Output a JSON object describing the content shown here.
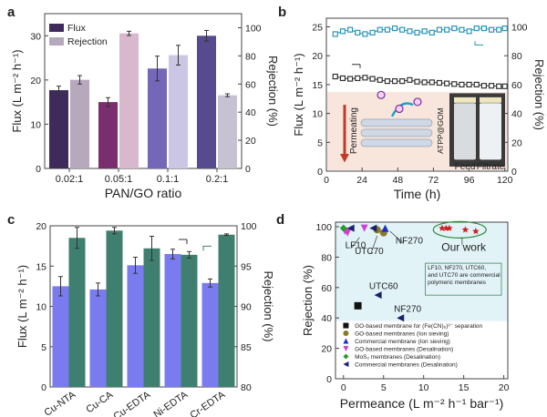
{
  "chart_data": [
    {
      "panel": "a",
      "type": "bar",
      "categories": [
        "0.02:1",
        "0.05:1",
        "0.1:1",
        "0.2:1"
      ],
      "xlabel": "PAN/GO ratio",
      "ylabel": "Flux (L m⁻² h⁻¹)",
      "ylabel_right": "Rejection (%)",
      "ylim": [
        0,
        35
      ],
      "ylim_right": [
        0,
        110
      ],
      "yticks": [
        0,
        10,
        20,
        30
      ],
      "yticks_right": [
        0,
        20,
        40,
        60,
        80,
        100
      ],
      "series": [
        {
          "name": "Flux",
          "axis": "left",
          "values": [
            17.7,
            15.0,
            22.6,
            30.0
          ],
          "errors": [
            0.9,
            1.0,
            2.8,
            1.2
          ],
          "colors": [
            "#3f2a5c",
            "#7a2e6e",
            "#7467b8",
            "#574a8e"
          ]
        },
        {
          "name": "Rejection",
          "axis": "right",
          "values": [
            63,
            96,
            80.5,
            52
          ],
          "errors": [
            3,
            1.5,
            7,
            1
          ],
          "colors": [
            "#b7a9bd",
            "#d8b8cc",
            "#cbc6e3",
            "#c6c2d2"
          ]
        }
      ],
      "legend": "top-left"
    },
    {
      "panel": "b",
      "type": "line",
      "xlabel": "Time (h)",
      "ylabel": "Flux (L m⁻² h⁻¹)",
      "ylabel_right": "Rejection (%)",
      "xlim": [
        0,
        122
      ],
      "ylim": [
        0,
        26.5
      ],
      "ylim_right": [
        0,
        106
      ],
      "xticks": [
        0,
        24,
        48,
        72,
        96,
        120
      ],
      "yticks": [
        0,
        5,
        10,
        15,
        20,
        25
      ],
      "yticks_right": [
        0,
        20,
        40,
        60,
        80,
        100
      ],
      "x": [
        6,
        11,
        16,
        21,
        26,
        31,
        36,
        41,
        46,
        51,
        56,
        61,
        66,
        71,
        76,
        81,
        86,
        91,
        96,
        101,
        106,
        111,
        116,
        120
      ],
      "series": [
        {
          "axis": "left",
          "color": "#333333",
          "values": [
            16.4,
            16.1,
            16.0,
            16.1,
            16.2,
            16.0,
            15.8,
            15.6,
            15.6,
            15.6,
            15.8,
            15.5,
            15.4,
            15.4,
            15.3,
            15.2,
            15.1,
            15.0,
            15.0,
            15.0,
            14.8,
            14.8,
            14.7,
            14.7
          ]
        },
        {
          "axis": "right",
          "color": "#2a95b8",
          "values": [
            95,
            97,
            98,
            96,
            95,
            96,
            98,
            98,
            99,
            98,
            97,
            96,
            97,
            96,
            98,
            98,
            99,
            98,
            97,
            99,
            99,
            98,
            98,
            99
          ]
        }
      ],
      "inset": {
        "arrow_label": "Permeating",
        "membrane_label": "ATPP@GOM",
        "photo_labels": [
          "Feed",
          "Filtrate"
        ]
      }
    },
    {
      "panel": "c",
      "type": "bar",
      "categories": [
        "Cu-NTA",
        "Cu-CA",
        "Cu-EDTA",
        "Ni-EDTA",
        "Cr-EDTA"
      ],
      "ylabel": "Flux (L m⁻² h⁻¹)",
      "ylabel_right": "Rejection (%)",
      "ylim": [
        0,
        20
      ],
      "ylim_right": [
        80,
        100
      ],
      "yticks": [
        0,
        5,
        10,
        15,
        20
      ],
      "yticks_right": [
        80,
        85,
        90,
        95,
        100
      ],
      "series": [
        {
          "axis": "left",
          "color": "#7b7bf0",
          "values": [
            12.5,
            12.1,
            15.1,
            16.5,
            12.9
          ],
          "errors": [
            1.2,
            0.8,
            1.0,
            0.6,
            0.5
          ]
        },
        {
          "axis": "right",
          "color": "#3f7f6f",
          "values": [
            98.5,
            99.4,
            97.2,
            96.4,
            98.9
          ],
          "errors": [
            1.3,
            0.4,
            1.5,
            0.4,
            0.1
          ]
        }
      ]
    },
    {
      "panel": "d",
      "type": "scatter",
      "xlabel": "Permeance (L m⁻² h⁻¹ bar⁻¹)",
      "ylabel": "Rejection (%)",
      "xlim": [
        -1,
        20.5
      ],
      "ylim": [
        0,
        103
      ],
      "xticks": [
        0,
        5,
        10,
        15,
        20
      ],
      "yticks": [
        0,
        20,
        40,
        60,
        80,
        100
      ],
      "series": [
        {
          "name": "GO-based membrane for (Fe(CN)₆)³⁻ separation",
          "marker": "square",
          "color": "#111111",
          "points": [
            [
              1.8,
              48
            ]
          ]
        },
        {
          "name": "GO-based membranes (Ion sieving)",
          "marker": "circle",
          "color": "#8a7a2a",
          "points": [
            [
              4.2,
              98
            ],
            [
              5.0,
              96
            ]
          ]
        },
        {
          "name": "Commercial membrane (Ion sieving)",
          "marker": "triangle-up",
          "color": "#1a2fd0",
          "points": [
            [
              5.2,
              99
            ]
          ]
        },
        {
          "name": "GO-based membranes (Desalination)",
          "marker": "triangle-down",
          "color": "#d040d0",
          "points": [
            [
              0.2,
              97
            ],
            [
              0.5,
              96
            ],
            [
              2.6,
              99
            ]
          ]
        },
        {
          "name": "MoS₂ membranes (Desalination)",
          "marker": "diamond",
          "color": "#2a9a2a",
          "points": [
            [
              0,
              99
            ]
          ]
        },
        {
          "name": "Commercial membranes (Desalination)",
          "marker": "triangle-left",
          "color": "#1a2070",
          "points": [
            [
              0.9,
              99
            ],
            [
              3.7,
              99
            ],
            [
              4.3,
              55
            ],
            [
              7.1,
              40
            ]
          ]
        },
        {
          "marker": "star",
          "color": "#d02020",
          "points": [
            [
              12.3,
              99
            ],
            [
              12.8,
              99
            ],
            [
              13.2,
              99
            ],
            [
              15.2,
              98
            ],
            [
              16.5,
              97
            ]
          ]
        }
      ],
      "annotations": [
        {
          "text": "LF10",
          "x": 1.5,
          "y": 86
        },
        {
          "text": "UTC70",
          "x": 3.2,
          "y": 82
        },
        {
          "text": "NF270",
          "x": 8.2,
          "y": 89
        },
        {
          "text": "UTC60",
          "x": 5.0,
          "y": 59
        },
        {
          "text": "NF270",
          "x": 8.0,
          "y": 44
        },
        {
          "text": "Our work",
          "x": 15.0,
          "y": 84
        }
      ],
      "note": [
        "LF10, NF270, UTC60,",
        "and UTC70 are commercial",
        "polymeric membranes"
      ],
      "legend": "bottom-left"
    }
  ],
  "panel_labels": [
    "a",
    "b",
    "c",
    "d"
  ]
}
